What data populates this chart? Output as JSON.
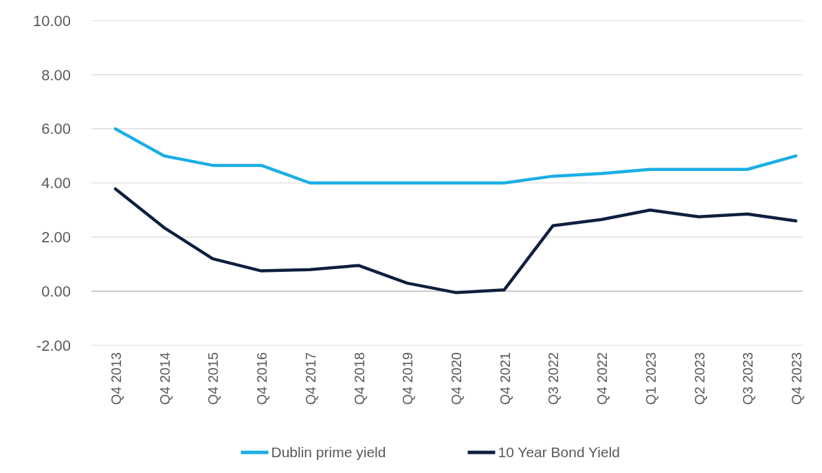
{
  "chart_data": {
    "type": "line",
    "categories": [
      "Q4 2013",
      "Q4 2014",
      "Q4 2015",
      "Q4 2016",
      "Q4 2017",
      "Q4 2018",
      "Q4 2019",
      "Q4 2020",
      "Q4 2021",
      "Q3 2022",
      "Q4 2022",
      "Q1 2023",
      "Q2 2023",
      "Q3 2023",
      "Q4 2023"
    ],
    "series": [
      {
        "name": "Dublin prime yield",
        "color": "#1aaee6",
        "values": [
          6.0,
          5.0,
          4.65,
          4.65,
          4.0,
          4.0,
          4.0,
          4.0,
          4.0,
          4.25,
          4.35,
          4.5,
          4.5,
          4.5,
          5.0
        ]
      },
      {
        "name": "10 Year Bond Yield",
        "color": "#0e1f3f",
        "values": [
          3.78,
          2.35,
          1.2,
          0.75,
          0.8,
          0.95,
          0.3,
          -0.05,
          0.05,
          2.42,
          2.65,
          3.0,
          2.75,
          2.85,
          2.6
        ]
      }
    ],
    "ylim": [
      -2,
      10
    ],
    "yticks": [
      {
        "value": -2,
        "label": "-2.00"
      },
      {
        "value": 0,
        "label": "0.00"
      },
      {
        "value": 2,
        "label": "2.00"
      },
      {
        "value": 4,
        "label": "4.00"
      },
      {
        "value": 6,
        "label": "6.00"
      },
      {
        "value": 8,
        "label": "8.00"
      },
      {
        "value": 10,
        "label": "10.00"
      }
    ],
    "grid": "y",
    "legend": "bottom",
    "marker": "none",
    "line_style": "solid"
  }
}
